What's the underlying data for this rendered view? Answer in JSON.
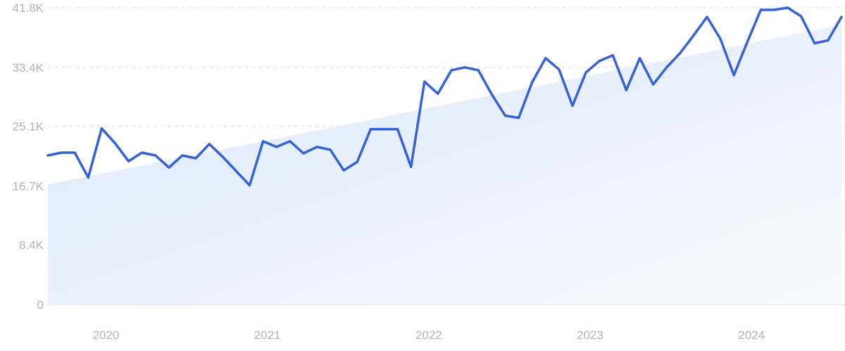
{
  "chart_data": {
    "type": "line",
    "title": "",
    "xlabel": "",
    "ylabel": "",
    "grid": true,
    "legend": "none",
    "ylim": [
      0,
      41800
    ],
    "xlim": [
      "2019-09",
      "2024-08"
    ],
    "y_ticks": [
      {
        "value": 0,
        "label": "0"
      },
      {
        "value": 8400,
        "label": "8.4K"
      },
      {
        "value": 16700,
        "label": "16.7K"
      },
      {
        "value": 25100,
        "label": "25.1K"
      },
      {
        "value": 33400,
        "label": "33.4K"
      },
      {
        "value": 41800,
        "label": "41.8K"
      }
    ],
    "x_ticks": [
      {
        "value": "2020-01",
        "label": "2020"
      },
      {
        "value": "2021-01",
        "label": "2021"
      },
      {
        "value": "2022-01",
        "label": "2022"
      },
      {
        "value": "2023-01",
        "label": "2023"
      },
      {
        "value": "2024-01",
        "label": "2024"
      }
    ],
    "trend": {
      "start": {
        "x": "2019-09",
        "y": 16900
      },
      "end": {
        "x": "2024-08",
        "y": 39400
      }
    },
    "series": [
      {
        "color": "#3461dc",
        "x": [
          "2019-09",
          "2019-10",
          "2019-11",
          "2019-12",
          "2020-01",
          "2020-02",
          "2020-03",
          "2020-04",
          "2020-05",
          "2020-06",
          "2020-07",
          "2020-08",
          "2020-09",
          "2020-10",
          "2020-11",
          "2020-12",
          "2021-01",
          "2021-02",
          "2021-03",
          "2021-04",
          "2021-05",
          "2021-06",
          "2021-07",
          "2021-08",
          "2021-09",
          "2021-10",
          "2021-11",
          "2021-12",
          "2022-01",
          "2022-02",
          "2022-03",
          "2022-04",
          "2022-05",
          "2022-06",
          "2022-07",
          "2022-08",
          "2022-09",
          "2022-10",
          "2022-11",
          "2022-12",
          "2023-01",
          "2023-02",
          "2023-03",
          "2023-04",
          "2023-05",
          "2023-06",
          "2023-07",
          "2023-08",
          "2023-09",
          "2023-10",
          "2023-11",
          "2023-12",
          "2024-01",
          "2024-02",
          "2024-03",
          "2024-04",
          "2024-05",
          "2024-06",
          "2024-07",
          "2024-08"
        ],
        "values": [
          21000,
          21400,
          21400,
          17900,
          24800,
          22700,
          20200,
          21400,
          21000,
          19300,
          21000,
          20600,
          22600,
          20800,
          18800,
          16800,
          23000,
          22200,
          23000,
          21300,
          22200,
          21800,
          18900,
          20100,
          24700,
          24700,
          24700,
          19400,
          31400,
          29700,
          33000,
          33400,
          33000,
          29600,
          26600,
          26300,
          31300,
          34700,
          33100,
          28000,
          32700,
          34300,
          35100,
          30200,
          34700,
          31000,
          33400,
          35400,
          37900,
          40500,
          37400,
          32300,
          37000,
          41500,
          41500,
          41800,
          40600,
          36800,
          37200,
          40500
        ]
      }
    ]
  },
  "colors": {
    "line": "#3461dc",
    "area_top": "#dbe8fb",
    "area_bottom": "#f7fafe",
    "grid": "#d6dbe4",
    "tick_text": "#b3b3b3"
  }
}
